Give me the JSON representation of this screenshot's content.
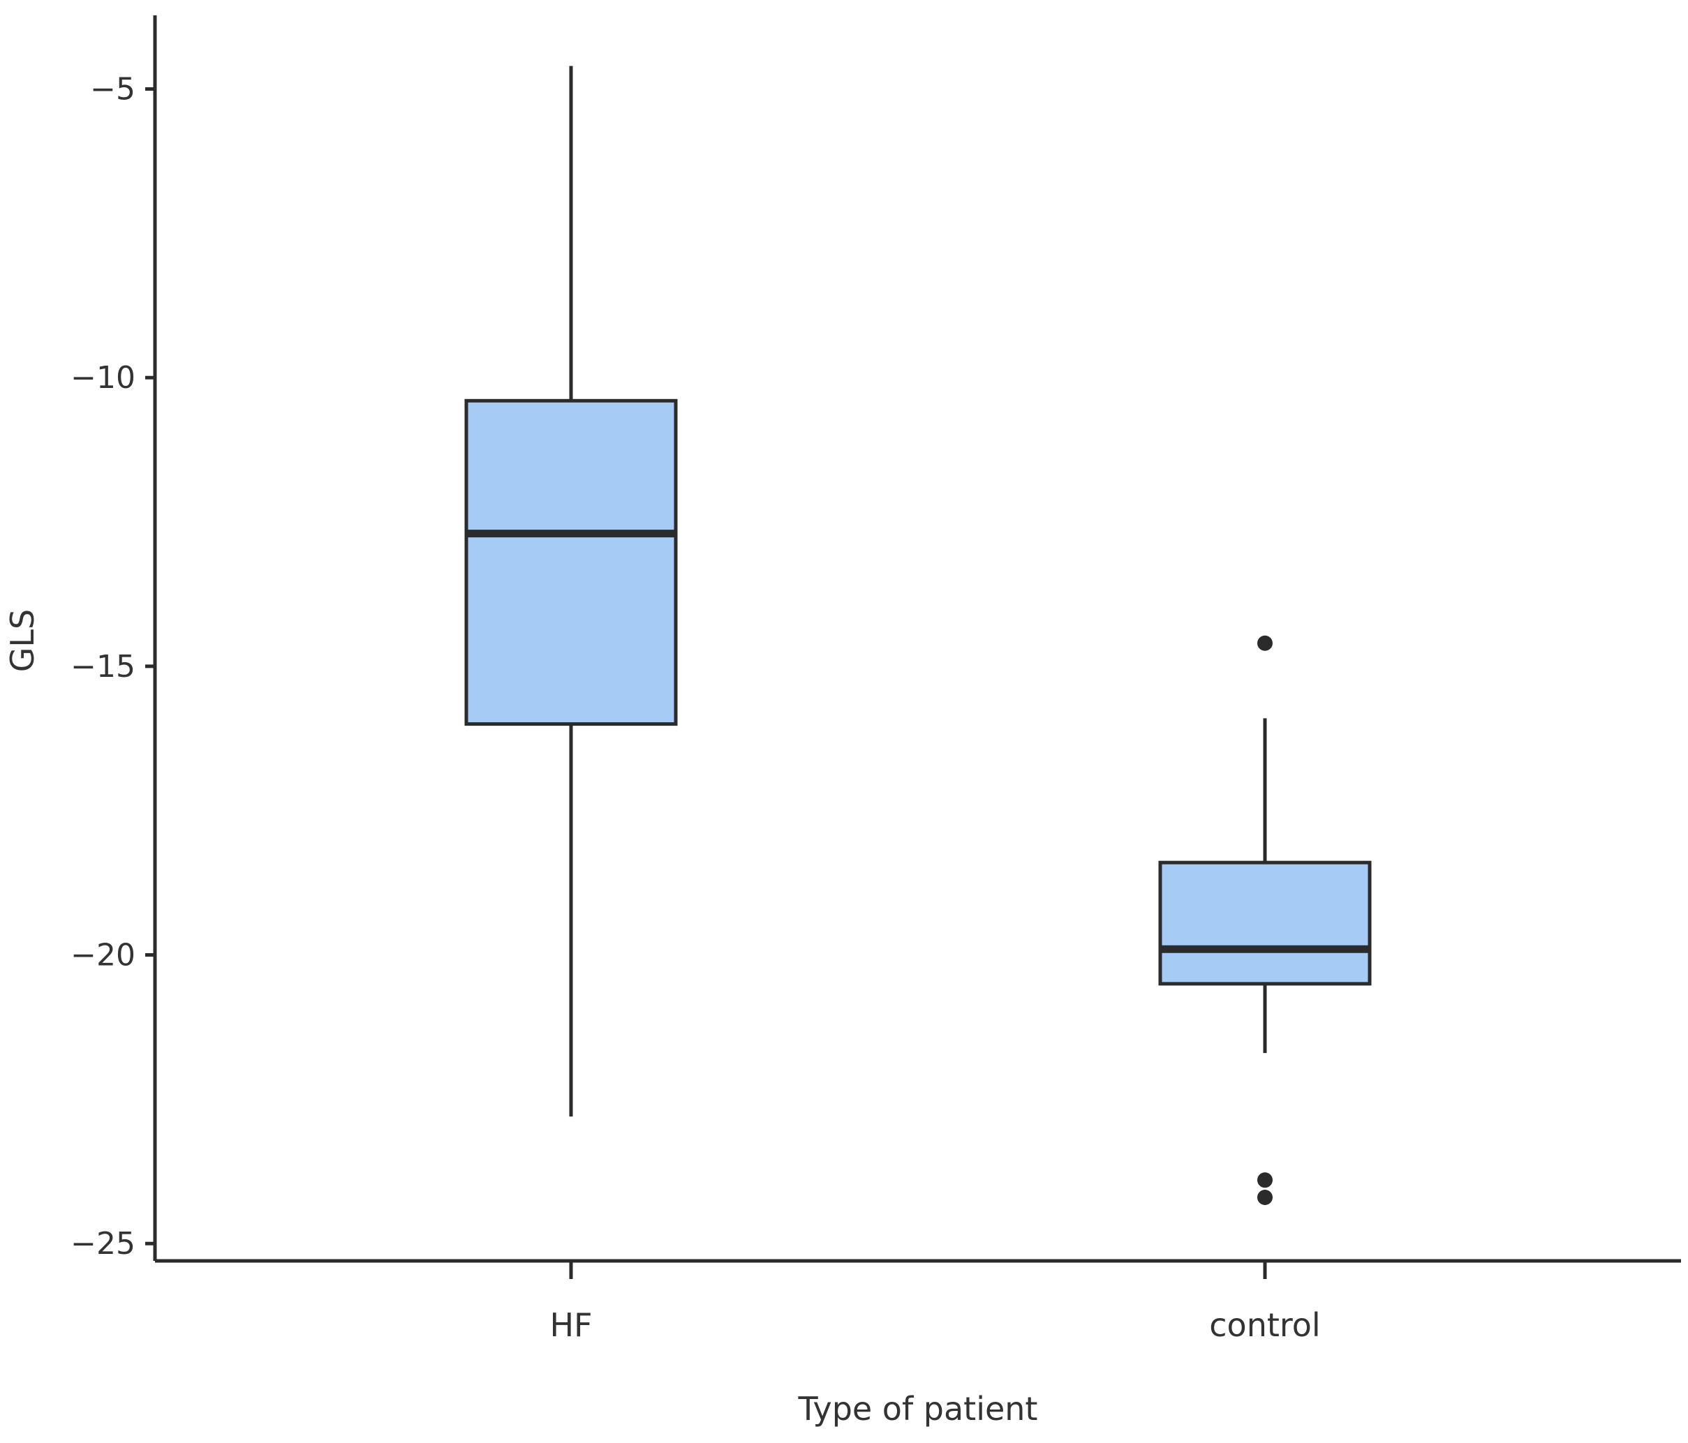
{
  "chart_data": {
    "type": "box",
    "title": "",
    "xlabel": "Type of patient",
    "ylabel": "GLS",
    "ylim": [
      -25.3,
      -3.7
    ],
    "yticks": [
      -5,
      -10,
      -15,
      -20,
      -25
    ],
    "ytick_labels": [
      "−5",
      "−10",
      "−15",
      "−20",
      "−25"
    ],
    "categories": [
      "HF",
      "control"
    ],
    "boxes": [
      {
        "category": "HF",
        "whisker_low": -22.8,
        "q1": -16.0,
        "median": -12.7,
        "q3": -10.4,
        "whisker_high": -4.6,
        "outliers": []
      },
      {
        "category": "control",
        "whisker_low": -21.7,
        "q1": -20.5,
        "median": -19.9,
        "q3": -18.4,
        "whisker_high": -15.9,
        "outliers": [
          -14.6,
          -23.9,
          -24.2
        ]
      }
    ],
    "colors": {
      "box_fill": "#a6cbf5",
      "box_stroke": "#2b2b2b",
      "axis": "#2b2b2b",
      "text": "#333333"
    },
    "grid": false,
    "legend": "none"
  }
}
